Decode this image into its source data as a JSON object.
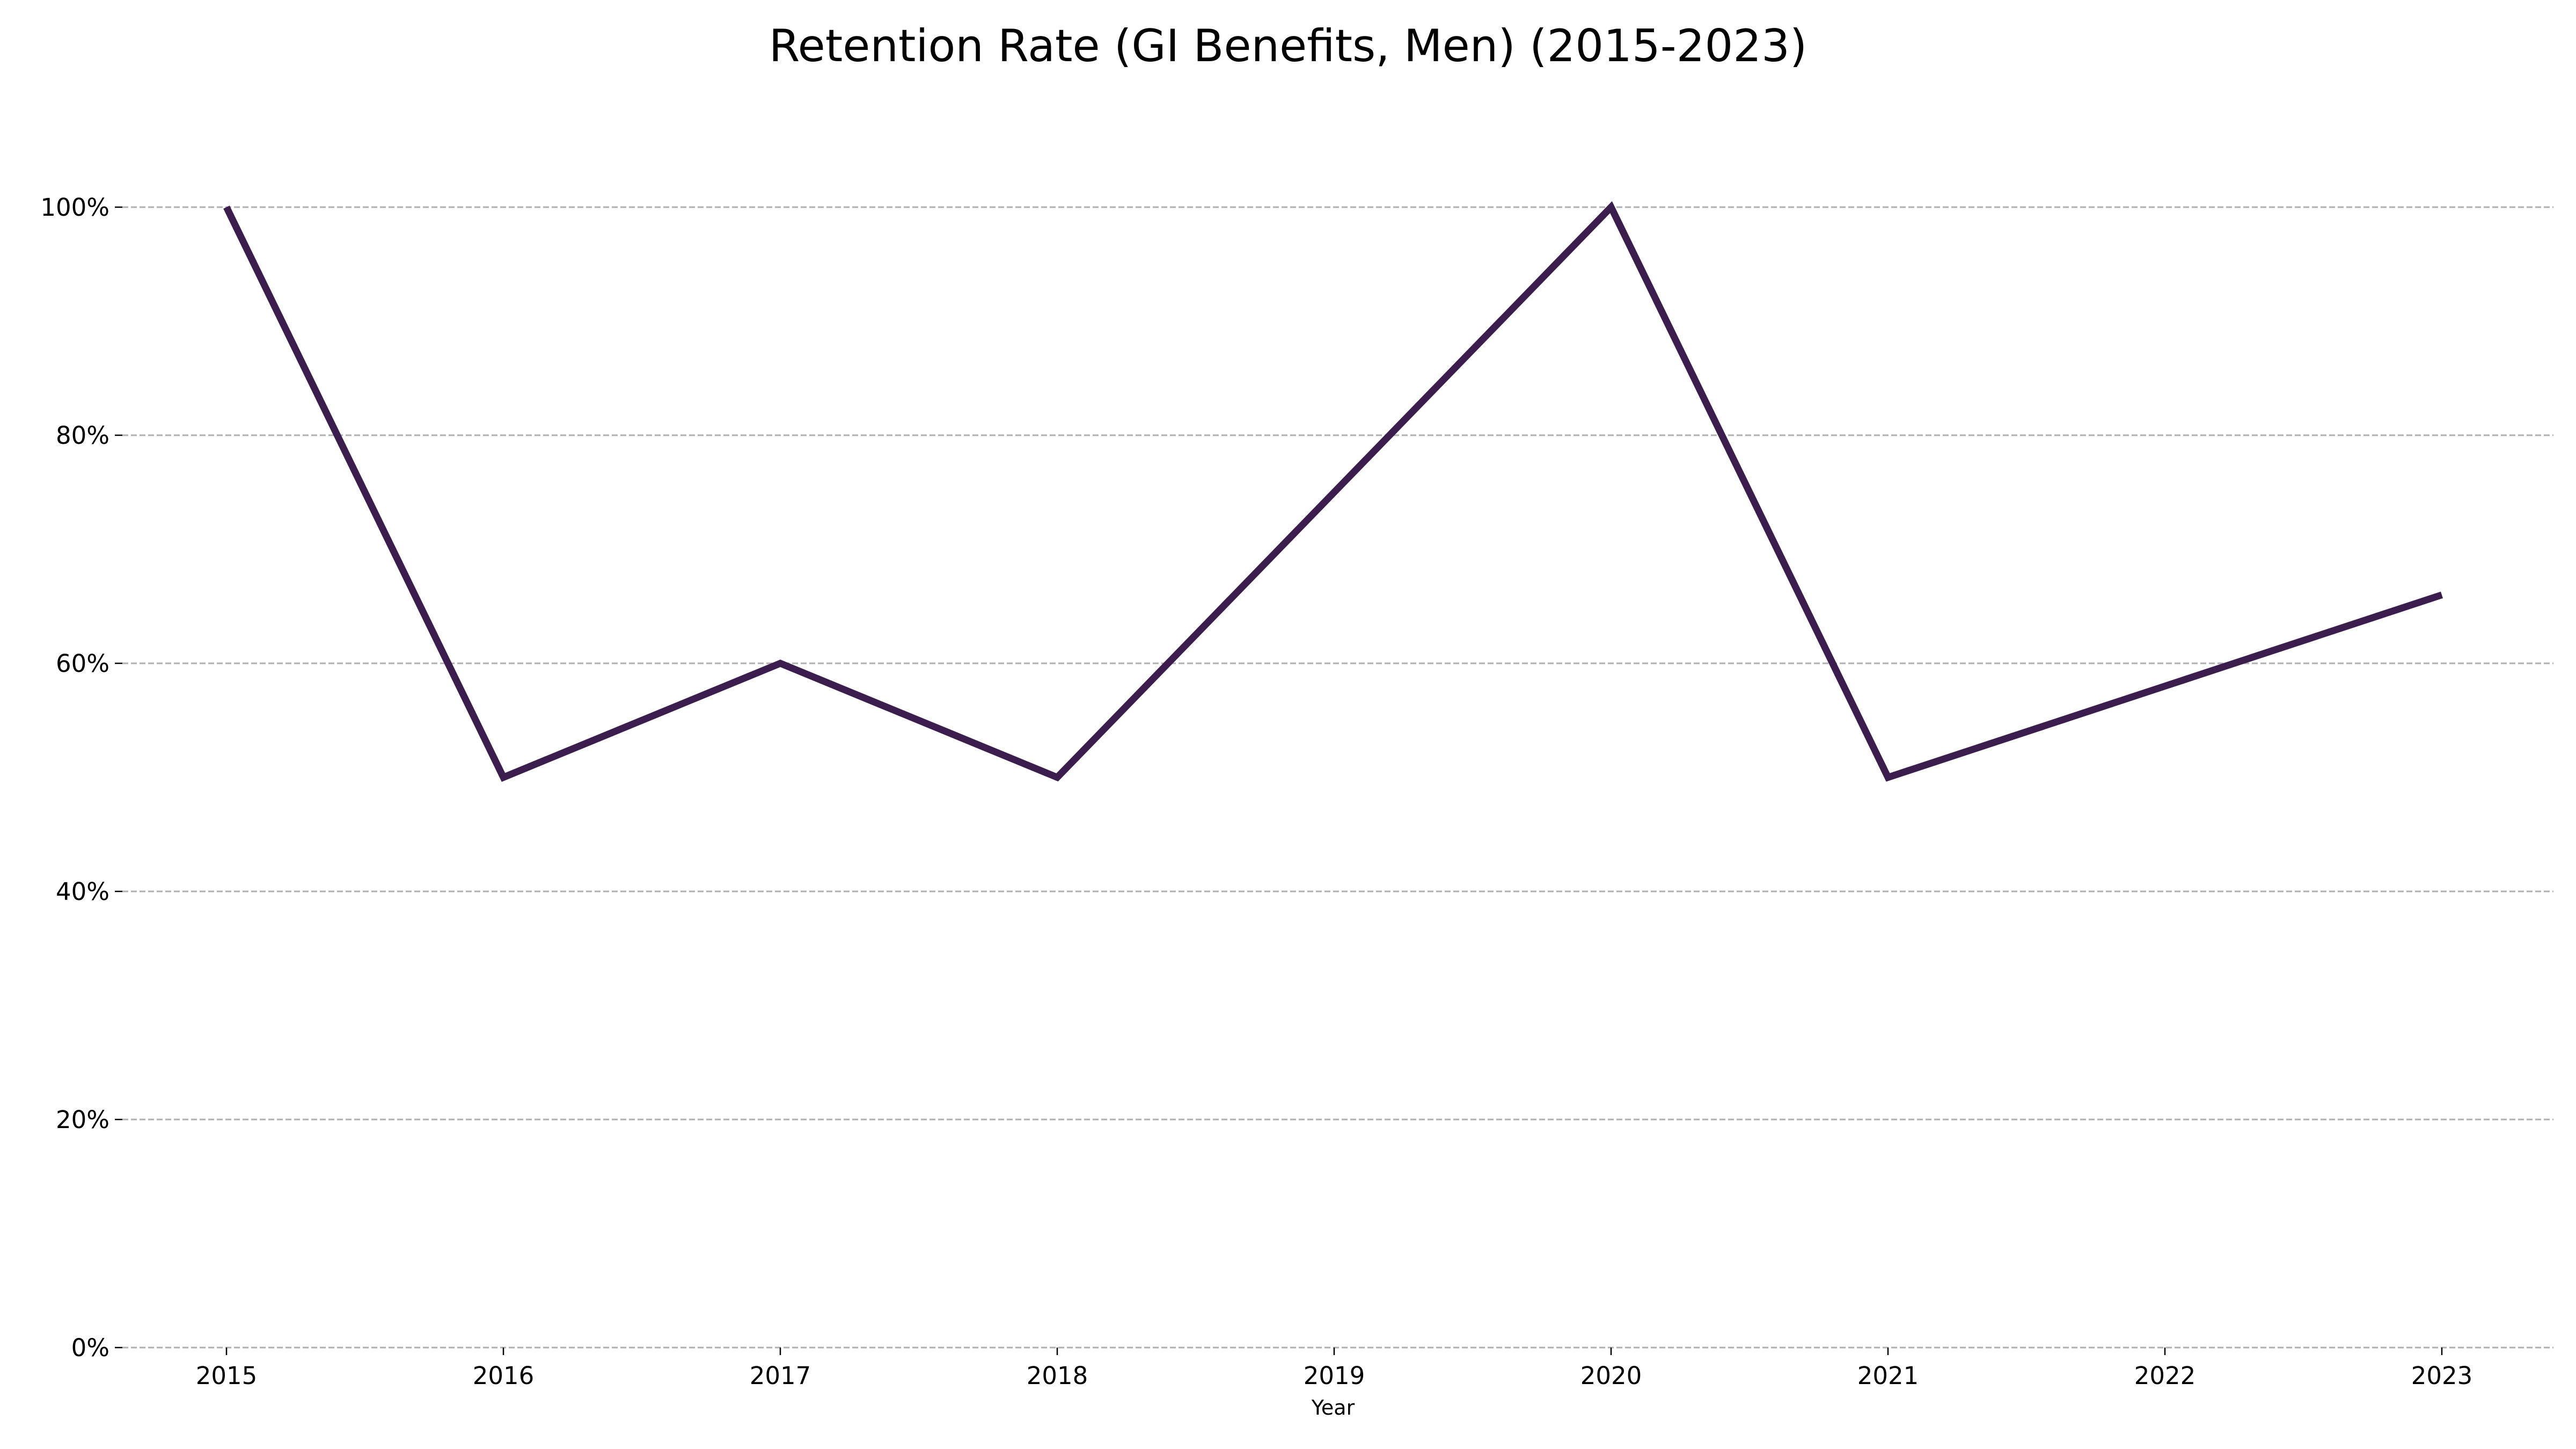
{
  "chart_data": {
    "type": "line",
    "title": "Retention Rate (GI Benefits, Men) (2015-2023)",
    "xlabel": "Year",
    "ylabel": "",
    "categories": [
      "2015",
      "2016",
      "2017",
      "2018",
      "2019",
      "2020",
      "2021",
      "2022",
      "2023"
    ],
    "series": [
      {
        "values": [
          100,
          50,
          60,
          50,
          75,
          100,
          50,
          58,
          66
        ],
        "color": "#3b1d4e"
      }
    ],
    "ylim": [
      0,
      110
    ],
    "yticks": [
      0,
      20,
      40,
      60,
      80,
      100
    ],
    "ytick_labels": [
      "0%",
      "20%",
      "40%",
      "60%",
      "80%",
      "100%"
    ],
    "grid": "horizontal dashed",
    "legend": "none"
  }
}
